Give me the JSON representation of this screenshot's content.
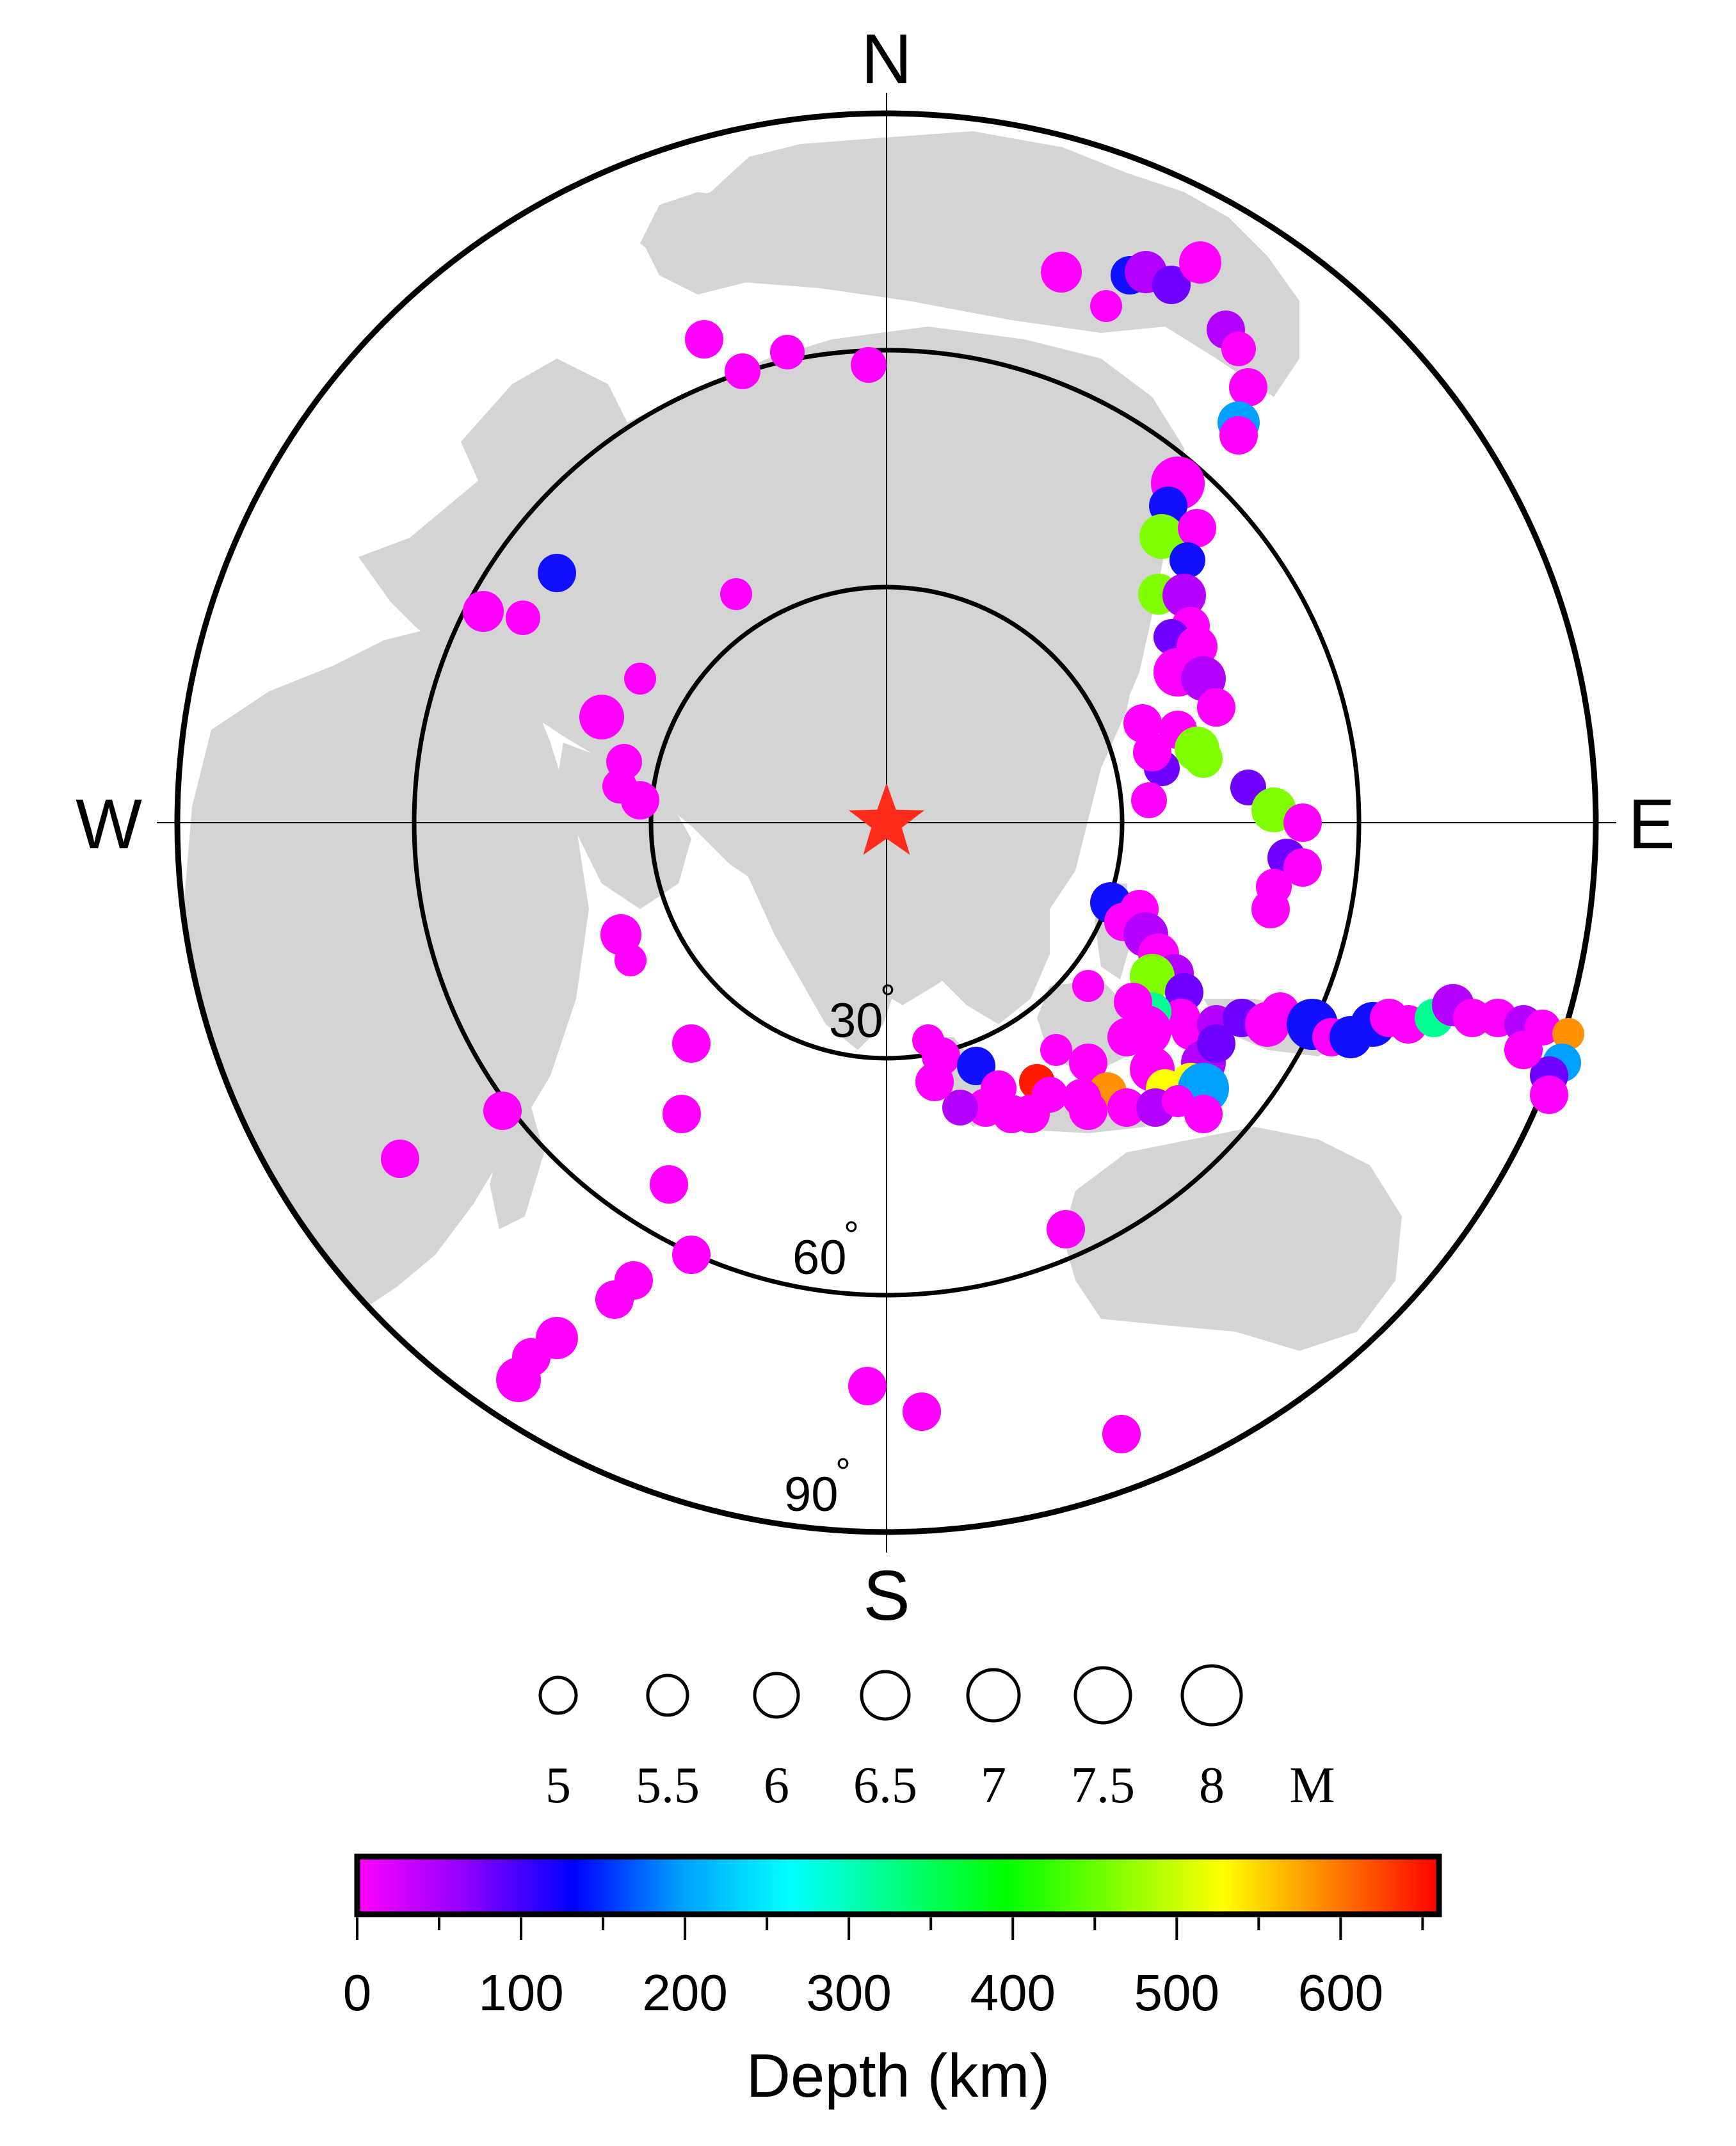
{
  "directions": {
    "north": "N",
    "south": "S",
    "east": "E",
    "west": "W"
  },
  "distance_rings": [
    {
      "label": "30",
      "unit": "°"
    },
    {
      "label": "60",
      "unit": "°"
    },
    {
      "label": "90",
      "unit": "°"
    }
  ],
  "station": {
    "marker": "star-icon",
    "color": "#ff2a1a"
  },
  "colors": {
    "land": "#d4d4d4",
    "ring": "#000000",
    "background": "#ffffff"
  },
  "magnitude_legend": {
    "values": [
      "5",
      "5.5",
      "6",
      "6.5",
      "7",
      "7.5",
      "8"
    ],
    "unit_label": "M"
  },
  "depth_colorbar": {
    "title": "Depth (km)",
    "ticks": [
      "0",
      "100",
      "200",
      "300",
      "400",
      "500",
      "600"
    ],
    "range": [
      0,
      660
    ],
    "gradient_stops": [
      "#ff00ff",
      "#9000ff",
      "#0000ff",
      "#00a0ff",
      "#00ffff",
      "#00ff80",
      "#00ff00",
      "#80ff00",
      "#ffff00",
      "#ff8000",
      "#ff0000"
    ]
  }
}
